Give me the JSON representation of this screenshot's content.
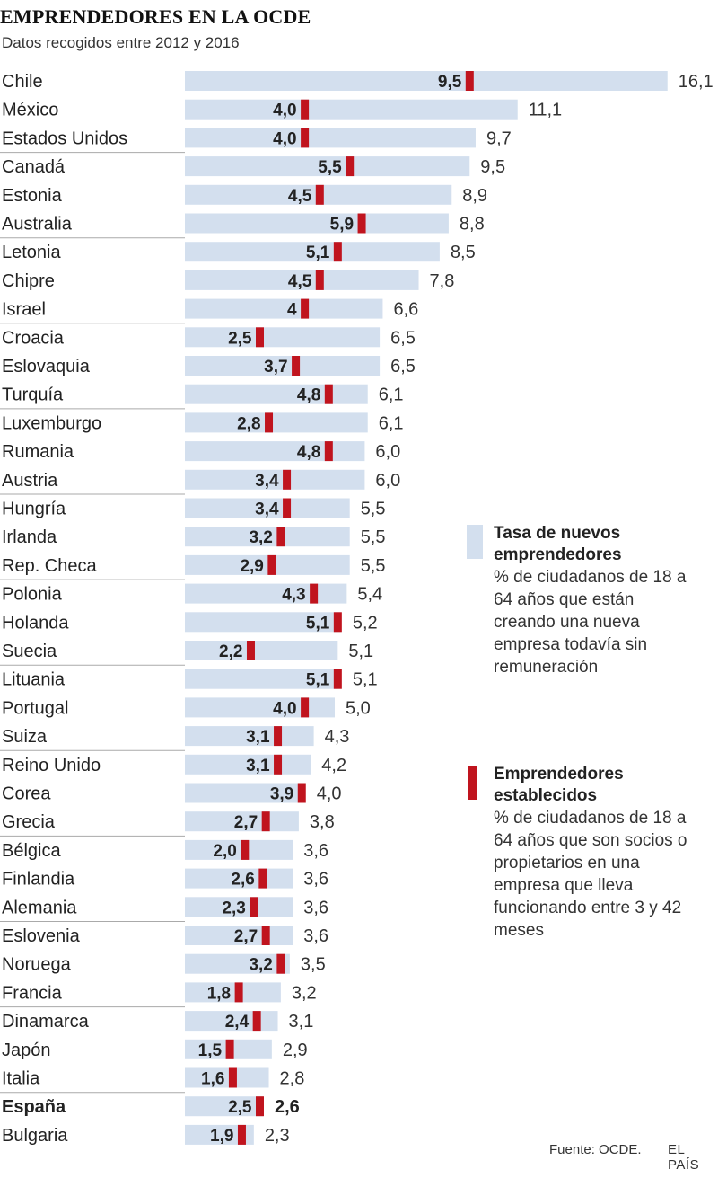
{
  "title": "EMPRENDEDORES EN LA OCDE",
  "subtitle": "Datos recogidos entre 2012 y 2016",
  "legend": {
    "new_title": "Tasa de nuevos emprendedores",
    "new_desc": "% de ciudadanos de 18 a 64 años que están creando una nueva empresa todavía sin remuneración",
    "est_title": "Emprendedores establecidos",
    "est_desc": "% de ciudadanos de 18 a 64 años que son socios o propietarios en una empresa que lleva funcionando entre 3 y 42 meses"
  },
  "source": "Fuente: OCDE.",
  "brand": "EL PAÍS",
  "colors": {
    "new_bar": "#d3dfee",
    "established_marker": "#c0141e",
    "separator": "#aaaaaa"
  },
  "chart_data": {
    "type": "bar",
    "orientation": "horizontal",
    "title": "EMPRENDEDORES EN LA OCDE",
    "subtitle": "Datos recogidos entre 2012 y 2016",
    "categories": [
      "Chile",
      "México",
      "Estados Unidos",
      "Canadá",
      "Estonia",
      "Australia",
      "Letonia",
      "Chipre",
      "Israel",
      "Croacia",
      "Eslovaquia",
      "Turquía",
      "Luxemburgo",
      "Rumania",
      "Austria",
      "Hungría",
      "Irlanda",
      "Rep. Checa",
      "Polonia",
      "Holanda",
      "Suecia",
      "Lituania",
      "Portugal",
      "Suiza",
      "Reino Unido",
      "Corea",
      "Grecia",
      "Bélgica",
      "Finlandia",
      "Alemania",
      "Eslovenia",
      "Noruega",
      "Francia",
      "Dinamarca",
      "Japón",
      "Italia",
      "España",
      "Bulgaria"
    ],
    "highlight": "España",
    "series": [
      {
        "name": "Tasa de nuevos emprendedores",
        "values": [
          16.1,
          11.1,
          9.7,
          9.5,
          8.9,
          8.8,
          8.5,
          7.8,
          6.6,
          6.5,
          6.5,
          6.1,
          6.1,
          6.0,
          6.0,
          5.5,
          5.5,
          5.5,
          5.4,
          5.2,
          5.1,
          5.1,
          5.0,
          4.3,
          4.2,
          4.0,
          3.8,
          3.6,
          3.6,
          3.6,
          3.6,
          3.5,
          3.2,
          3.1,
          2.9,
          2.8,
          2.6,
          2.3
        ],
        "labels": [
          "16,1",
          "11,1",
          "9,7",
          "9,5",
          "8,9",
          "8,8",
          "8,5",
          "7,8",
          "6,6",
          "6,5",
          "6,5",
          "6,1",
          "6,1",
          "6,0",
          "6,0",
          "5,5",
          "5,5",
          "5,5",
          "5,4",
          "5,2",
          "5,1",
          "5,1",
          "5,0",
          "4,3",
          "4,2",
          "4,0",
          "3,8",
          "3,6",
          "3,6",
          "3,6",
          "3,6",
          "3,5",
          "3,2",
          "3,1",
          "2,9",
          "2,8",
          "2,6",
          "2,3"
        ]
      },
      {
        "name": "Emprendedores establecidos",
        "values": [
          9.5,
          4.0,
          4.0,
          5.5,
          4.5,
          5.9,
          5.1,
          4.5,
          4,
          2.5,
          3.7,
          4.8,
          2.8,
          4.8,
          3.4,
          3.4,
          3.2,
          2.9,
          4.3,
          5.1,
          2.2,
          5.1,
          4.0,
          3.1,
          3.1,
          3.9,
          2.7,
          2.0,
          2.6,
          2.3,
          2.7,
          3.2,
          1.8,
          2.4,
          1.5,
          1.6,
          2.5,
          1.9
        ],
        "labels": [
          "9,5",
          "4,0",
          "4,0",
          "5,5",
          "4,5",
          "5,9",
          "5,1",
          "4,5",
          "4",
          "2,5",
          "3,7",
          "4,8",
          "2,8",
          "4,8",
          "3,4",
          "3,4",
          "3,2",
          "2,9",
          "4,3",
          "5,1",
          "2,2",
          "5,1",
          "4,0",
          "3,1",
          "3,1",
          "3,9",
          "2,7",
          "2,0",
          "2,6",
          "2,3",
          "2,7",
          "3,2",
          "1,8",
          "2,4",
          "1,5",
          "1,6",
          "2,5",
          "1,9"
        ]
      }
    ]
  }
}
